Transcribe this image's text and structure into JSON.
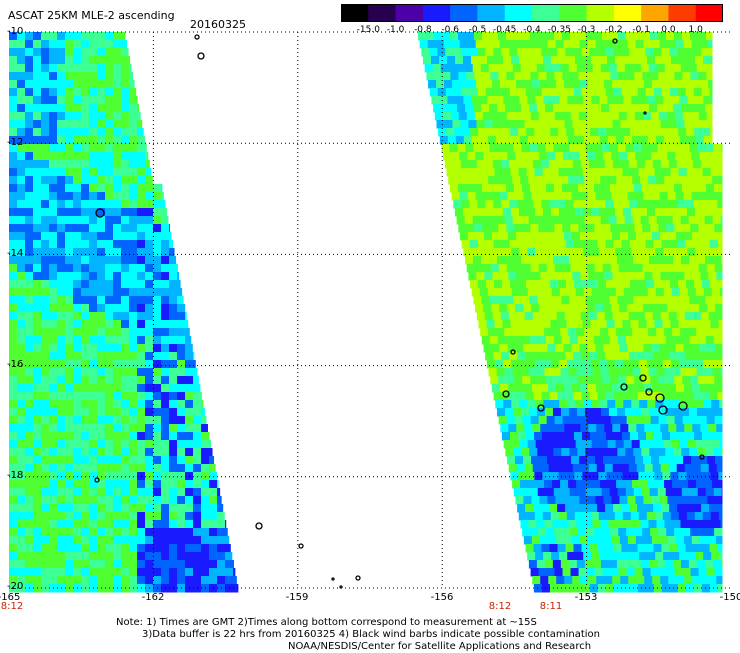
{
  "header": {
    "title": "ASCAT 25KM MLE-2 ascending",
    "date": "20160325"
  },
  "colorbar": {
    "labels": [
      "-15.0",
      "-1.0",
      "-0.8",
      "-0.6",
      "-0.5",
      "-0.45",
      "-0.4",
      "-0.35",
      "-0.3",
      "-0.2",
      "-0.1",
      "0.0",
      "1.0"
    ],
    "colors": [
      "#000000",
      "#280050",
      "#4b00a8",
      "#1a1aff",
      "#0064ff",
      "#00b4ff",
      "#00ffff",
      "#3cff96",
      "#50ff32",
      "#b4ff00",
      "#ffff00",
      "#ffa500",
      "#ff3c00",
      "#ff0000"
    ]
  },
  "axes": {
    "lat_labels": [
      "-10",
      "-12",
      "-14",
      "-16",
      "-18",
      "-20"
    ],
    "lon_labels": [
      "-165",
      "-162",
      "-159",
      "-156",
      "-153",
      "-150"
    ]
  },
  "swath_times": [
    {
      "label": "8:12"
    },
    {
      "label": "8:12"
    },
    {
      "label": "8:11"
    }
  ],
  "notes": [
    "Note: 1) Times are GMT 2)Times along bottom correspond to measurement at ~15S",
    "3)Data buffer is 22 hrs from 20160325 4) Black wind barbs indicate possible contamination",
    "NOAA/NESDIS/Center for Satellite Applications and Research"
  ]
}
